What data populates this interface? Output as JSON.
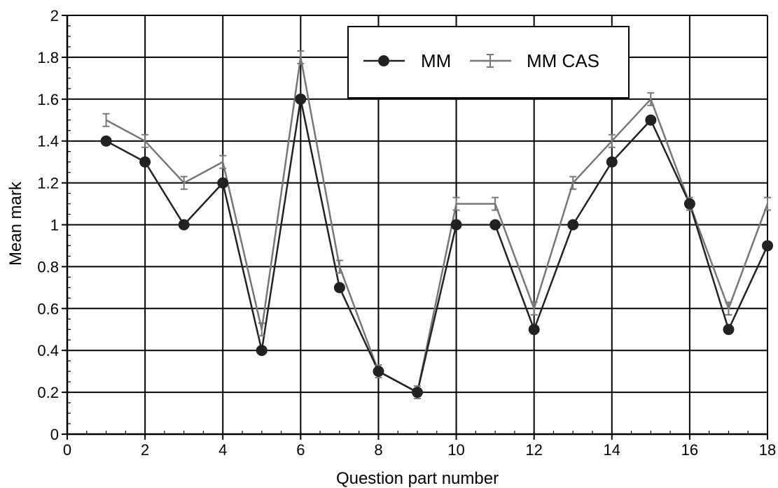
{
  "chart_data": {
    "type": "line",
    "xlabel": "Question part number",
    "ylabel": "Mean mark",
    "xlim": [
      0,
      18
    ],
    "ylim": [
      0,
      2
    ],
    "x_ticks": [
      0,
      2,
      4,
      6,
      8,
      10,
      12,
      14,
      16,
      18
    ],
    "x_tick_labels": [
      "0",
      "2",
      "4",
      "6",
      "8",
      "10",
      "12",
      "14",
      "16",
      "18"
    ],
    "y_ticks": [
      0,
      0.2,
      0.4,
      0.6,
      0.8,
      1.0,
      1.2,
      1.4,
      1.6,
      1.8,
      2.0
    ],
    "y_tick_labels": [
      "0",
      "0.2",
      "0.4",
      "0.6",
      "0.8",
      "1",
      "1.2",
      "1.4",
      "1.6",
      "1.8",
      "2"
    ],
    "grid": true,
    "legend_position": "top-right",
    "x": [
      1,
      2,
      3,
      4,
      5,
      6,
      7,
      8,
      9,
      10,
      11,
      12,
      13,
      14,
      15,
      16,
      17,
      18
    ],
    "series": [
      {
        "name": "MM",
        "marker": "circle",
        "color": "#222222",
        "values": [
          1.4,
          1.3,
          1.0,
          1.2,
          0.4,
          1.6,
          0.7,
          0.3,
          0.2,
          1.0,
          1.0,
          0.5,
          1.0,
          1.3,
          1.5,
          1.1,
          0.5,
          0.9
        ]
      },
      {
        "name": "MM CAS",
        "marker": "I-bar",
        "color": "#777777",
        "values": [
          1.5,
          1.4,
          1.2,
          1.3,
          0.5,
          1.8,
          0.8,
          0.3,
          0.2,
          1.1,
          1.1,
          0.6,
          1.2,
          1.4,
          1.6,
          1.1,
          0.6,
          1.1
        ]
      }
    ]
  }
}
